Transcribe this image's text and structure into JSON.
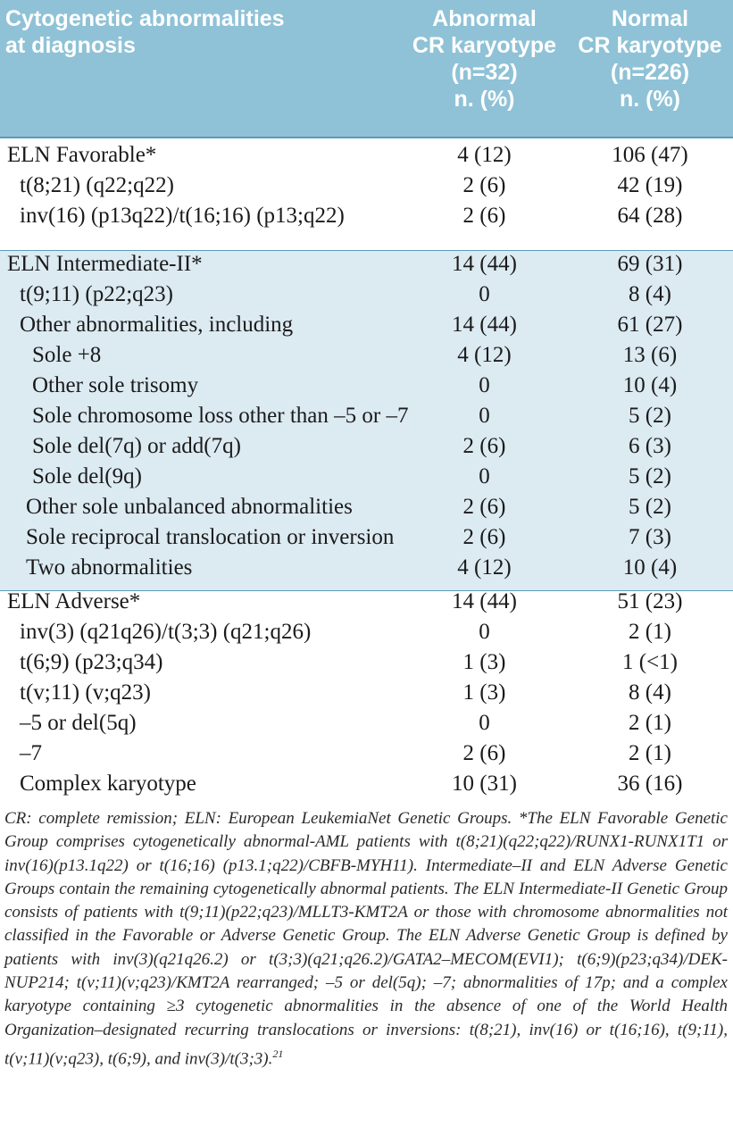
{
  "header": {
    "col0": [
      "Cytogenetic abnormalities",
      "at diagnosis"
    ],
    "col1": [
      "Abnormal",
      "CR karyotype",
      "(n=32)",
      "n. (%)"
    ],
    "col2": [
      "Normal",
      "CR karyotype",
      "(n=226)",
      "n. (%)"
    ]
  },
  "rows": [
    {
      "label": "ELN Favorable*",
      "abnormal": "4 (12)",
      "normal": "106 (47)"
    },
    {
      "label": "t(8;21) (q22;q22)",
      "abnormal": "2 (6)",
      "normal": "42 (19)"
    },
    {
      "label": "inv(16) (p13q22)/t(16;16) (p13;q22)",
      "abnormal": "2 (6)",
      "normal": "64 (28)"
    },
    {
      "label": "ELN Intermediate-II*",
      "abnormal": "14 (44)",
      "normal": "69 (31)"
    },
    {
      "label": "t(9;11) (p22;q23)",
      "abnormal": "0",
      "normal": "8 (4)"
    },
    {
      "label": "Other abnormalities, including",
      "abnormal": "14 (44)",
      "normal": "61 (27)"
    },
    {
      "label": "Sole +8",
      "abnormal": "4 (12)",
      "normal": "13 (6)"
    },
    {
      "label": "Other sole trisomy",
      "abnormal": "0",
      "normal": "10 (4)"
    },
    {
      "label": "Sole chromosome loss other than –5 or –7",
      "abnormal": "0",
      "normal": "5 (2)"
    },
    {
      "label": "Sole del(7q) or add(7q)",
      "abnormal": "2 (6)",
      "normal": "6 (3)"
    },
    {
      "label": "Sole del(9q)",
      "abnormal": "0",
      "normal": "5 (2)"
    },
    {
      "label": "Other sole unbalanced abnormalities",
      "abnormal": "2 (6)",
      "normal": "5 (2)"
    },
    {
      "label": "Sole reciprocal translocation or inversion",
      "abnormal": "2 (6)",
      "normal": "7 (3)"
    },
    {
      "label": "Two abnormalities",
      "abnormal": "4 (12)",
      "normal": "10 (4)"
    },
    {
      "label": "ELN Adverse*",
      "abnormal": "14 (44)",
      "normal": "51 (23)"
    },
    {
      "label": "inv(3) (q21q26)/t(3;3) (q21;q26)",
      "abnormal": "0",
      "normal": "2 (1)"
    },
    {
      "label": "t(6;9) (p23;q34)",
      "abnormal": "1 (3)",
      "normal": "1 (<1)"
    },
    {
      "label": "t(v;11) (v;q23)",
      "abnormal": "1 (3)",
      "normal": "8 (4)"
    },
    {
      "label": "–5 or del(5q)",
      "abnormal": "0",
      "normal": "2 (1)"
    },
    {
      "label": "–7",
      "abnormal": "2 (6)",
      "normal": "2 (1)"
    },
    {
      "label": "Complex karyotype",
      "abnormal": "10 (31)",
      "normal": "36 (16)"
    }
  ],
  "footnote": "CR: complete remission; ELN: European LeukemiaNet Genetic Groups. *The ELN Favorable Genetic Group comprises cytogenetically abnormal-AML patients with t(8;21)(q22;q22)/RUNX1-RUNX1T1 or inv(16)(p13.1q22) or t(16;16) (p13.1;q22)/CBFB-MYH11). Intermediate–II and ELN Adverse Genetic Groups contain the remaining cytogenetically abnormal patients. The ELN Intermediate-II Genetic Group consists of patients with t(9;11)(p22;q23)/MLLT3-KMT2A or those with chromosome abnormalities not classified in the Favorable or Adverse Genetic Group. The ELN Adverse Genetic Group is defined by patients with inv(3)(q21q26.2) or t(3;3)(q21;q26.2)/GATA2–MECOM(EVI1); t(6;9)(p23;q34)/DEK-NUP214; t(v;11)(v;q23)/KMT2A rearranged; –5 or del(5q); –7; abnormalities of 17p; and a complex karyotype containing ≥3 cytogenetic abnormalities in the absence of one of the World Health Organization–designated recurring translocations or inversions: t(8;21), inv(16) or t(16;16), t(9;11), t(v;11)(v;q23), t(6;9), and inv(3)/t(3;3).",
  "footnote_ref": "21",
  "colors": {
    "header_bg": "#8fc2d6",
    "band_bg": "#dceaf2",
    "rule": "#5a9cb8"
  }
}
